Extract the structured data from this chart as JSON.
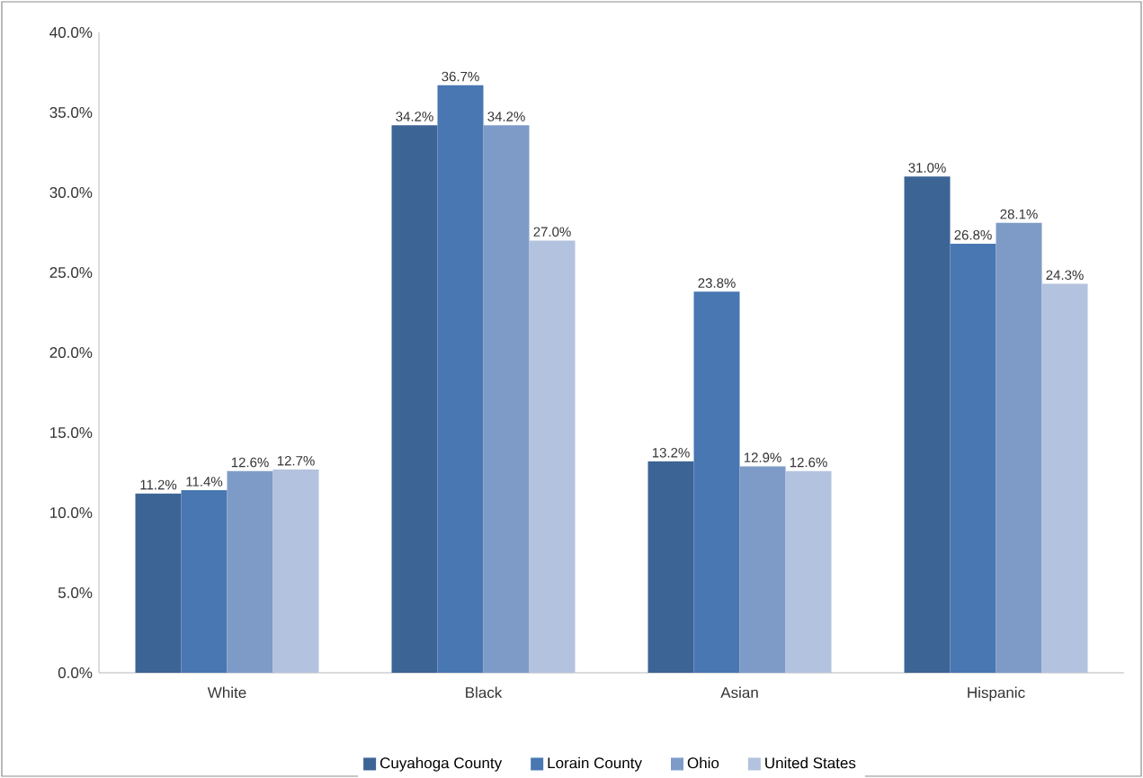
{
  "chart_data": {
    "type": "bar",
    "categories": [
      "White",
      "Black",
      "Asian",
      "Hispanic"
    ],
    "series": [
      {
        "name": "Cuyahoga County",
        "color": "#3c6495",
        "values": [
          11.2,
          34.2,
          13.2,
          31.0
        ],
        "value_labels": [
          "11.2%",
          "34.2%",
          "13.2%",
          "31.0%"
        ]
      },
      {
        "name": "Lorain County",
        "color": "#4877b2",
        "values": [
          11.4,
          36.7,
          23.8,
          26.8
        ],
        "value_labels": [
          "11.4%",
          "36.7%",
          "23.8%",
          "26.8%"
        ]
      },
      {
        "name": "Ohio",
        "color": "#7e9bc8",
        "values": [
          12.6,
          34.2,
          12.9,
          28.1
        ],
        "value_labels": [
          "12.6%",
          "34.2%",
          "12.9%",
          "28.1%"
        ]
      },
      {
        "name": "United States",
        "color": "#b3c2de",
        "values": [
          12.7,
          27.0,
          12.6,
          24.3
        ],
        "value_labels": [
          "12.7%",
          "27.0%",
          "12.6%",
          "24.3%"
        ]
      }
    ],
    "ylim": [
      0,
      40
    ],
    "yticks": [
      {
        "value": 0,
        "label": "0.0%"
      },
      {
        "value": 5,
        "label": "5.0%"
      },
      {
        "value": 10,
        "label": "10.0%"
      },
      {
        "value": 15,
        "label": "15.0%"
      },
      {
        "value": 20,
        "label": "20.0%"
      },
      {
        "value": 25,
        "label": "25.0%"
      },
      {
        "value": 30,
        "label": "30.0%"
      },
      {
        "value": 35,
        "label": "35.0%"
      },
      {
        "value": 40,
        "label": "40.0%"
      }
    ],
    "grid": false,
    "legend": "bottom"
  }
}
